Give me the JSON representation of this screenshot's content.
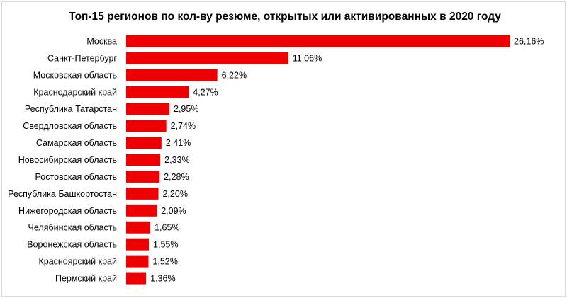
{
  "chart_data": {
    "type": "bar",
    "orientation": "horizontal",
    "title": "Топ-15 регионов по кол-ву резюме, открытых или активированных в 2020 году",
    "categories": [
      "Москва",
      "Санкт-Петербург",
      "Московская область",
      "Краснодарский край",
      "Республика Татарстан",
      "Свердловская область",
      "Самарская область",
      "Новосибирская область",
      "Ростовская область",
      "Республика Башкортостан",
      "Нижегородская область",
      "Челябинская область",
      "Воронежская область",
      "Красноярский край",
      "Пермский край"
    ],
    "values": [
      26.16,
      11.06,
      6.22,
      4.27,
      2.95,
      2.74,
      2.41,
      2.33,
      2.28,
      2.2,
      2.09,
      1.65,
      1.55,
      1.52,
      1.36
    ],
    "data_labels": [
      "26,16%",
      "11,06%",
      "6,22%",
      "4,27%",
      "2,95%",
      "2,74%",
      "2,41%",
      "2,33%",
      "2,28%",
      "2,20%",
      "2,09%",
      "1,65%",
      "1,55%",
      "1,52%",
      "1,36%"
    ],
    "xlabel": "",
    "ylabel": "",
    "xlim": [
      0,
      26.16
    ],
    "grid": false,
    "legend": "none",
    "bar_color": "#ee0000"
  }
}
